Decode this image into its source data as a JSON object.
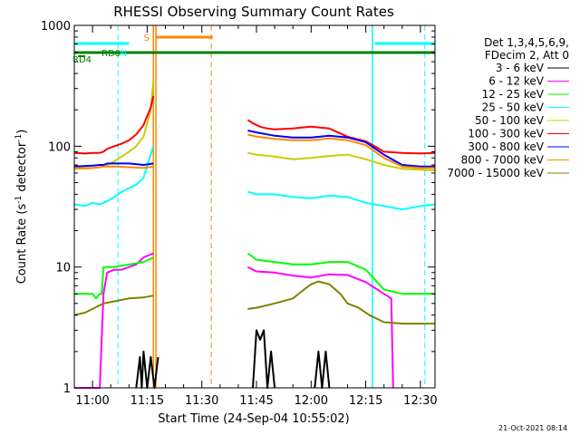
{
  "chart_data": {
    "type": "line",
    "title": "RHESSI Observing Summary Count Rates",
    "xlabel": "Start Time (24-Sep-04 10:55:02)",
    "ylabel_prefix": "Count Rate (s",
    "ylabel_sup": "-1",
    "ylabel_suffix": " detector",
    "ylabel_sup2": "-1",
    "ylabel_close": ")",
    "yscale": "log",
    "xlim_min": [
      55,
      154
    ],
    "ylim": [
      1,
      1000
    ],
    "x_ticks": [
      {
        "v": 60,
        "label": "11:00"
      },
      {
        "v": 75,
        "label": "11:15"
      },
      {
        "v": 90,
        "label": "11:30"
      },
      {
        "v": 105,
        "label": "11:45"
      },
      {
        "v": 120,
        "label": "12:00"
      },
      {
        "v": 135,
        "label": "12:15"
      },
      {
        "v": 150,
        "label": "12:30"
      }
    ],
    "y_ticks": [
      {
        "v": 1,
        "label": "1"
      },
      {
        "v": 10,
        "label": "10"
      },
      {
        "v": 100,
        "label": "100"
      },
      {
        "v": 1000,
        "label": "1000"
      }
    ],
    "legend_header": [
      "Det 1,3,4,5,6,9,",
      "FDecim 2, Att 0"
    ],
    "series": [
      {
        "name": "3 - 6 keV",
        "color": "#000000",
        "segments": [
          {
            "x": [
              72,
              73,
              73.5,
              74,
              75,
              76,
              77,
              78
            ],
            "y": [
              1,
              1.8,
              1,
              2,
              1,
              1.8,
              1,
              1.8
            ]
          },
          {
            "x": [
              104,
              105,
              106,
              107,
              108,
              109,
              110
            ],
            "y": [
              1,
              3,
              2.5,
              3,
              1,
              2,
              1
            ]
          },
          {
            "x": [
              121,
              122,
              123,
              124,
              125
            ],
            "y": [
              1,
              2,
              1,
              2,
              1
            ]
          }
        ]
      },
      {
        "name": "6 - 12 keV",
        "color": "#ff00ff",
        "segments": [
          {
            "x": [
              55,
              62,
              63,
              64,
              66,
              68,
              70,
              72,
              74,
              76.7
            ],
            "y": [
              1,
              1,
              6,
              9,
              9.5,
              9.5,
              10,
              10.5,
              12,
              13
            ]
          },
          {
            "x": [
              102.6,
              105,
              110,
              115,
              120,
              125,
              130,
              135,
              140,
              142,
              142.5
            ],
            "y": [
              10,
              9.2,
              9,
              8.5,
              8.2,
              8.7,
              8.6,
              7.5,
              6,
              5.5,
              1
            ]
          }
        ]
      },
      {
        "name": "12 - 25 keV",
        "color": "#00ff00",
        "segments": [
          {
            "x": [
              55,
              58,
              60,
              61,
              62,
              62.5,
              63,
              66,
              70,
              74,
              76.7
            ],
            "y": [
              6,
              6,
              6,
              5.5,
              6,
              6,
              10,
              10,
              10.5,
              11,
              12
            ]
          },
          {
            "x": [
              102.6,
              105,
              110,
              115,
              120,
              125,
              130,
              135,
              140,
              145,
              150,
              154
            ],
            "y": [
              13,
              11.5,
              11,
              10.5,
              10.5,
              11,
              11,
              9.5,
              6.5,
              6,
              6,
              6
            ]
          }
        ]
      },
      {
        "name": "25 - 50 keV",
        "color": "#00ffff",
        "segments": [
          {
            "x": [
              55,
              58,
              60,
              62,
              64,
              66,
              68,
              70,
              72,
              74,
              76.7
            ],
            "y": [
              33,
              32,
              34,
              33,
              35,
              38,
              42,
              45,
              48,
              55,
              100
            ]
          },
          {
            "x": [
              102.6,
              105,
              110,
              115,
              120,
              125,
              130,
              135,
              140,
              145,
              150,
              154
            ],
            "y": [
              42,
              40,
              40,
              38,
              37,
              39,
              38,
              34,
              32,
              30,
              32,
              33
            ]
          }
        ]
      },
      {
        "name": "50 - 100 keV",
        "color": "#cccc00",
        "segments": [
          {
            "x": [
              55,
              58,
              60,
              62,
              64,
              66,
              68,
              70,
              72,
              74,
              76,
              76.7
            ],
            "y": [
              65,
              65,
              66,
              67,
              70,
              75,
              82,
              90,
              100,
              120,
              200,
              350
            ]
          },
          {
            "x": [
              102.6,
              105,
              110,
              115,
              120,
              125,
              130,
              135,
              140,
              145,
              150,
              154
            ],
            "y": [
              88,
              85,
              82,
              78,
              80,
              83,
              85,
              78,
              70,
              65,
              64,
              63
            ]
          }
        ]
      },
      {
        "name": "100 - 300 keV",
        "color": "#ff0000",
        "segments": [
          {
            "x": [
              55,
              58,
              60,
              62,
              63,
              64,
              66,
              68,
              70,
              72,
              74,
              76,
              76.7
            ],
            "y": [
              88,
              87,
              88,
              88,
              90,
              95,
              100,
              105,
              112,
              125,
              150,
              210,
              260
            ]
          },
          {
            "x": [
              102.6,
              104,
              106,
              108,
              110,
              115,
              120,
              125,
              130,
              135,
              140,
              145,
              150,
              154
            ],
            "y": [
              165,
              155,
              145,
              140,
              138,
              140,
              145,
              140,
              120,
              110,
              90,
              88,
              87,
              88
            ]
          }
        ]
      },
      {
        "name": "300 - 800 keV",
        "color": "#0000ff",
        "segments": [
          {
            "x": [
              55,
              60,
              62,
              63,
              64,
              66,
              70,
              74,
              76.7
            ],
            "y": [
              68,
              69,
              70,
              70,
              72,
              72,
              72,
              70,
              72
            ]
          },
          {
            "x": [
              102.6,
              105,
              110,
              115,
              120,
              125,
              130,
              135,
              140,
              145,
              150,
              154
            ],
            "y": [
              135,
              130,
              122,
              118,
              118,
              122,
              118,
              108,
              85,
              70,
              68,
              68
            ]
          }
        ]
      },
      {
        "name": "800 - 7000 keV",
        "color": "#ff8800",
        "segments": [
          {
            "x": [
              55,
              60,
              62,
              63,
              64,
              66,
              70,
              74,
              76.7
            ],
            "y": [
              66,
              66,
              67,
              68,
              68,
              68,
              67,
              66,
              68
            ]
          },
          {
            "x": [
              102.6,
              105,
              110,
              115,
              120,
              125,
              130,
              135,
              140,
              145,
              150,
              154
            ],
            "y": [
              125,
              120,
              115,
              112,
              112,
              116,
              112,
              102,
              80,
              68,
              66,
              66
            ]
          }
        ]
      },
      {
        "name": "7000 - 15000 keV",
        "color": "#808000",
        "segments": [
          {
            "x": [
              55,
              58,
              60,
              63,
              66,
              70,
              74,
              76.7
            ],
            "y": [
              4,
              4.2,
              4.5,
              5,
              5.2,
              5.5,
              5.6,
              5.8
            ]
          },
          {
            "x": [
              102.6,
              105,
              110,
              115,
              118,
              120,
              122,
              125,
              128,
              130,
              133,
              136,
              140,
              145,
              150,
              154
            ],
            "y": [
              4.5,
              4.6,
              5,
              5.5,
              6.5,
              7.2,
              7.6,
              7.2,
              6,
              5,
              4.6,
              4,
              3.5,
              3.4,
              3.4,
              3.4
            ]
          }
        ]
      }
    ],
    "flags": [
      {
        "label": "N",
        "color": "#00ffff",
        "segments": [
          [
            55,
            70
          ],
          [
            137.5,
            154
          ]
        ]
      },
      {
        "label": "S",
        "color": "#ff8800",
        "segments": [
          [
            77.5,
            93
          ]
        ]
      },
      {
        "label": "RD0",
        "color": "#008000",
        "segments": [
          [
            55,
            154
          ]
        ]
      },
      {
        "label": "RD4",
        "color": "#008000",
        "segments": [
          [
            56,
            58
          ]
        ]
      }
    ],
    "vlines": [
      {
        "x": 67,
        "color": "#00ffff",
        "dash": true
      },
      {
        "x": 76.7,
        "color": "#ff8800",
        "dash": false
      },
      {
        "x": 77.4,
        "color": "#ff8800",
        "dash": false
      },
      {
        "x": 92.6,
        "color": "#ff8800",
        "dash": true
      },
      {
        "x": 136.8,
        "color": "#00ffff",
        "dash": false
      },
      {
        "x": 151.2,
        "color": "#00ffff",
        "dash": true
      }
    ],
    "footer_date": "21-Oct-2021 08:14"
  }
}
